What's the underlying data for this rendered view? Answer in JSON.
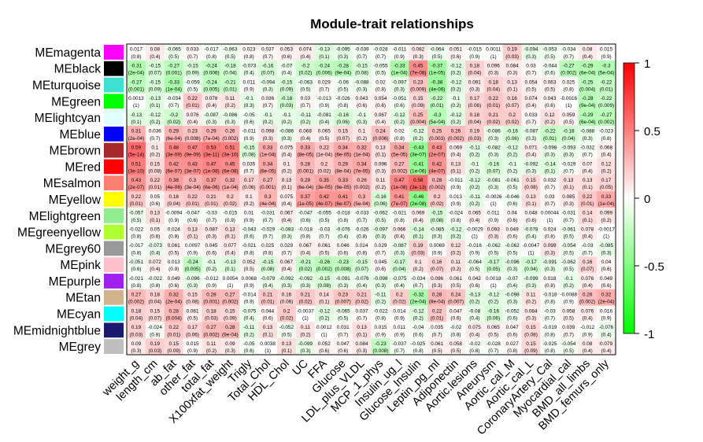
{
  "chart_data": {
    "type": "heatmap",
    "title": "Module-trait relationships",
    "rows": [
      "MEmagenta",
      "MEblack",
      "MEturquoise",
      "MEgreen",
      "MElightcyan",
      "MEblue",
      "MEbrown",
      "MEred",
      "MEsalmon",
      "MEyellow",
      "MElightgreen",
      "MEgreenyellow",
      "MEgrey60",
      "MEpink",
      "MEpurple",
      "MEtan",
      "MEcyan",
      "MEmidnightblue",
      "MEgrey"
    ],
    "row_colors": [
      "#ff00ff",
      "#000000",
      "#40e0d0",
      "#00ff00",
      "#e0ffff",
      "#0000ff",
      "#a52a2a",
      "#ff0000",
      "#fa8072",
      "#ffff00",
      "#90ee90",
      "#adff2f",
      "#999999",
      "#ffc0cb",
      "#a020f0",
      "#d2b48c",
      "#00ffff",
      "#191970",
      "#bebebe"
    ],
    "columns": [
      "weight_g",
      "length_cm",
      "ab_fat",
      "other_fat",
      "total_fat",
      "X100xfat_weight",
      "Trigly",
      "Total_Chol",
      "HDL_Chol",
      "UC",
      "FFA",
      "Glucose",
      "LDL_plus_VLDL",
      "MCP_1_phys",
      "Insulin_ug_l",
      "Glucose_Insulin",
      "Leptin_pg_ml",
      "Adiponectin",
      "Aortic.lesions",
      "Aneurysm",
      "Aortic_cal_M",
      "Aortic_cal_L",
      "CoronaryArtery_Cal",
      "Myocardial_cal",
      "BMD_all_limbs",
      "BMD_femurs_only"
    ],
    "values": [
      [
        "0.017",
        "0.08",
        "-0.065",
        "0.033",
        "-0.017",
        "-0.063",
        "0.023",
        "0.037",
        "0.053",
        "0.074",
        "-0.13",
        "-0.095",
        "-0.039",
        "-0.028",
        "-0.011",
        "0.082",
        "-0.064",
        "0.051",
        "-0.015",
        "0.0011",
        "0.19",
        "-0.094",
        "-0.053",
        "-0.034",
        "0.08",
        "0.015"
      ],
      [
        "-0.31",
        "-0.15",
        "-0.27",
        "-0.15",
        "-0.24",
        "-0.18",
        "-0.073",
        "-0.16",
        "-0.07",
        "-0.2",
        "-0.24",
        "-0.28",
        "-0.15",
        "-0.055",
        "-0.33",
        "0.45",
        "-0.37",
        "-0.12",
        "0.18",
        "0.096",
        "0.084",
        "0.03",
        "-0.044",
        "-0.27",
        "-0.29",
        "-0.3"
      ],
      [
        "-0.27",
        "-0.15",
        "-0.33",
        "-0.059",
        "-0.24",
        "-0.21",
        "0.011",
        "-0.094",
        "-0.15",
        "-0.063",
        "0.029",
        "-0.06",
        "-0.088",
        "0.02",
        "-0.097",
        "0.23",
        "-0.38",
        "-0.12",
        "0.091",
        "0.18",
        "0.13",
        "0.054",
        "0.063",
        "0.025",
        "-0.25",
        "-0.22"
      ],
      [
        "0.0013",
        "-0.13",
        "-0.034",
        "0.22",
        "0.078",
        "0.11",
        "-0.1",
        "0.036",
        "-0.18",
        "0.03",
        "-0.013",
        "-0.026",
        "0.043",
        "0.054",
        "-0.051",
        "0.15",
        "-0.22",
        "-0.1",
        "0.17",
        "0.22",
        "0.16",
        "0.074",
        "0.043",
        "-0.0016",
        "-0.28",
        "-0.22"
      ],
      [
        "-0.13",
        "-0.12",
        "-0.2",
        "0.076",
        "-0.087",
        "-0.086",
        "-0.05",
        "-0.1",
        "-0.1",
        "-0.11",
        "-0.081",
        "-0.16",
        "-0.1",
        "0.067",
        "-0.12",
        "0.25",
        "-0.3",
        "-0.12",
        "0.18",
        "0.21",
        "0.2",
        "0.033",
        "0.12",
        "0.059",
        "-0.29",
        "-0.27"
      ],
      [
        "0.31",
        "0.036",
        "0.29",
        "0.23",
        "0.29",
        "0.26",
        "-0.011",
        "0.098",
        "-0.086",
        "0.068",
        "0.065",
        "0.15",
        "0.1",
        "0.24",
        "0.02",
        "-0.12",
        "0.25",
        "0.26",
        "0.19",
        "-0.086",
        "-0.16",
        "-0.087",
        "-0.22",
        "-0.18",
        "-0.088",
        "-0.023"
      ],
      [
        "0.59",
        "0.1",
        "0.48",
        "0.47",
        "0.53",
        "0.51",
        "-0.15",
        "0.33",
        "0.075",
        "0.33",
        "0.22",
        "0.34",
        "0.32",
        "0.13",
        "0.34",
        "-0.43",
        "0.43",
        "0.069",
        "-0.11",
        "-0.082",
        "-0.12",
        "0.071",
        "-0.098",
        "-0.093",
        "-0.032",
        "0.068"
      ],
      [
        "0.51",
        "0.15",
        "0.42",
        "0.43",
        "0.47",
        "0.45",
        "0.035",
        "0.34",
        "0.1",
        "0.28",
        "0.2",
        "0.29",
        "0.34",
        "0.096",
        "0.27",
        "-0.41",
        "0.42",
        "0.13",
        "-0.1",
        "-0.16",
        "-0.1",
        "-0.092",
        "-0.14",
        "-0.029",
        "0.07",
        "0.12"
      ],
      [
        "0.43",
        "0.22",
        "0.38",
        "0.3",
        "0.37",
        "0.32",
        "0.17",
        "0.27",
        "0.13",
        "0.29",
        "0.35",
        "0.33",
        "0.26",
        "0.11",
        "0.47",
        "0.58",
        "0.28",
        "-0.011",
        "-0.12",
        "-0.081",
        "-0.061",
        "0.15",
        "0.032",
        "0.13",
        "0.13",
        "0.17"
      ],
      [
        "0.22",
        "0.05",
        "0.18",
        "0.22",
        "0.21",
        "0.2",
        "0.1",
        "0.3",
        "0.075",
        "0.37",
        "0.42",
        "0.41",
        "0.3",
        "-0.16",
        "0.41",
        "-0.46",
        "0.2",
        "0.013",
        "-0.11",
        "-0.0026",
        "-0.046",
        "0.13",
        "0.03",
        "0.085",
        "0.22",
        "0.33"
      ],
      [
        "-0.057",
        "0.13",
        "-0.0094",
        "-0.047",
        "-0.03",
        "-0.015",
        "0.01",
        "-0.031",
        "0.067",
        "-0.047",
        "-0.055",
        "-0.018",
        "-0.033",
        "-0.062",
        "-0.021",
        "0.069",
        "-0.15",
        "-0.024",
        "0.065",
        "0.011",
        "0.04",
        "0.048",
        "0.00044",
        "-0.031",
        "0.14",
        "0.099"
      ],
      [
        "-0.022",
        "0.05",
        "0.024",
        "0.13",
        "0.087",
        "0.13",
        "-0.043",
        "-0.029",
        "-0.083",
        "-0.018",
        "-0.03",
        "-0.076",
        "-0.026",
        "-0.097",
        "0.066",
        "-0.14",
        "-0.085",
        "-0.12",
        "-0.0029",
        "0.093",
        "0.049",
        "-0.078",
        "0.024",
        "-0.061",
        "0.078",
        "-0.0017"
      ],
      [
        "-0.017",
        "-0.073",
        "0.061",
        "0.0097",
        "0.045",
        "0.077",
        "-0.021",
        "0.025",
        "0.029",
        "0.067",
        "0.061",
        "0.046",
        "0.024",
        "0.029",
        "-0.087",
        "0.19",
        "0.0069",
        "0.12",
        "-0.016",
        "-0.062",
        "-0.062",
        "-0.0047",
        "0.099",
        "-0.054",
        "-0.03",
        "-0.085"
      ],
      [
        "-0.051",
        "0.072",
        "0.013",
        "-0.24",
        "-0.1",
        "-0.13",
        "0.052",
        "-0.15",
        "0.067",
        "-0.21",
        "-0.26",
        "-0.23",
        "-0.15",
        "0.045",
        "-0.17",
        "0.1",
        "0.16",
        "0.11",
        "-0.064",
        "-0.17",
        "-0.096",
        "-0.17",
        "-0.091",
        "-0.062",
        "0.16",
        "0.04"
      ],
      [
        "-0.021",
        "-0.022",
        "0.049",
        "-0.096",
        "-0.012",
        "0.0054",
        "0.0068",
        "-0.079",
        "-0.092",
        "-0.092",
        "-0.15",
        "-0.091",
        "-0.076",
        "-0.098",
        "-0.075",
        "-0.034",
        "0.096",
        "0.061",
        "0.042",
        "0.0018",
        "-0.07",
        "-0.099",
        "0.018",
        "-0.1",
        "0.076",
        "0.049"
      ],
      [
        "0.27",
        "0.18",
        "0.32",
        "0.15",
        "0.28",
        "0.27",
        "-0.014",
        "0.21",
        "0.16",
        "0.21",
        "0.14",
        "0.23",
        "0.21",
        "-0.11",
        "0.2",
        "-0.32",
        "0.28",
        "0.24",
        "-0.13",
        "-0.12",
        "-0.098",
        "0.11",
        "-0.018",
        "-0.0088",
        "0.26",
        "0.32"
      ],
      [
        "0.18",
        "0.15",
        "0.28",
        "0.061",
        "0.18",
        "0.15",
        "-0.075",
        "0.044",
        "0.2",
        "-0.0037",
        "-0.12",
        "-0.065",
        "0.037",
        "-0.022",
        "0.014",
        "-0.12",
        "0.22",
        "0.047",
        "-0.08",
        "-0.16",
        "-0.052",
        "0.084",
        "-0.03",
        "0.058",
        "0.076",
        "0.016"
      ],
      [
        "0.19",
        "-0.024",
        "0.22",
        "0.17",
        "0.27",
        "0.28",
        "-0.11",
        "0.13",
        "-0.052",
        "0.11",
        "0.0012",
        "0.031",
        "0.13",
        "0.015",
        "0.011",
        "-0.04",
        "0.035",
        "-0.02",
        "0.075",
        "0.065",
        "0.047",
        "0.15",
        "-0.019",
        "0.039",
        "-0.012",
        "-0.076"
      ],
      [
        "0.09",
        "0.19",
        "0.15",
        "0.015",
        "0.11",
        "0.09",
        "-0.05",
        "0.0038",
        "0.13",
        "-0.099",
        "0.052",
        "0.047",
        "0.084",
        "-0.23",
        "-0.037",
        "-0.025",
        "0.061",
        "0.058",
        "-0.02",
        "-0.028",
        "0.027",
        "0.15",
        "-0.025",
        "-0.054",
        "0.08",
        "0.079"
      ]
    ],
    "pvalues": [
      [
        "(0.8)",
        "(0.4)",
        "(0.5)",
        "(0.7)",
        "(0.8)",
        "(0.5)",
        "(0.8)",
        "(0.7)",
        "(0.6)",
        "(0.4)",
        "(0.1)",
        "(0.3)",
        "(0.7)",
        "(0.7)",
        "(0.9)",
        "(0.3)",
        "(0.5)",
        "(0.6)",
        "(0.9)",
        "(1)",
        "(0.03)",
        "(0.3)",
        "(0.5)",
        "(0.7)",
        "(0.4)",
        "(0.9)"
      ],
      [
        "(2e-04)",
        "(0.07)",
        "(0.001)",
        "(0.09)",
        "(0.006)",
        "(0.04)",
        "(0.4)",
        "(0.07)",
        "(0.4)",
        "(0.02)",
        "(0.006)",
        "(9e-04)",
        "(0.08)",
        "(0.5)",
        "(1e-04)",
        "(7e-08)",
        "(1e-05)",
        "(0.2)",
        "(0.04)",
        "(0.3)",
        "(0.3)",
        "(0.7)",
        "(0.6)",
        "(0.002)",
        "(6e-04)",
        "(5e-04)"
      ],
      [
        "(0.001)",
        "(0.09)",
        "(1e-04)",
        "(0.5)",
        "(0.005)",
        "(0.01)",
        "(0.9)",
        "(0.3)",
        "(0.09)",
        "(0.5)",
        "(0.7)",
        "(0.5)",
        "(0.3)",
        "(0.8)",
        "(0.3)",
        "(0.009)",
        "(4e-06)",
        "(0.2)",
        "(0.3)",
        "(0.04)",
        "(0.1)",
        "(0.5)",
        "(0.5)",
        "(0.8)",
        "(0.004)",
        "(0.01)"
      ],
      [
        "(1)",
        "(0.1)",
        "(0.7)",
        "(0.01)",
        "(0.4)",
        "(0.2)",
        "(0.3)",
        "(0.7)",
        "(0.03)",
        "(0.7)",
        "(0.9)",
        "(0.8)",
        "(0.6)",
        "(0.6)",
        "(0.6)",
        "(0.09)",
        "(0.01)",
        "(0.2)",
        "(0.06)",
        "(0.01)",
        "(0.07)",
        "(0.4)",
        "(0.6)",
        "(1)",
        "(9e-04)",
        "(0.009)"
      ],
      [
        "(0.1)",
        "(0.2)",
        "(0.02)",
        "(0.4)",
        "(0.3)",
        "(0.3)",
        "(0.6)",
        "(0.2)",
        "(0.2)",
        "(0.2)",
        "(0.4)",
        "(0.06)",
        "(0.3)",
        "(0.4)",
        "(0.2)",
        "(0.004)",
        "(5e-04)",
        "(0.2)",
        "(0.04)",
        "(0.02)",
        "(0.02)",
        "(0.7)",
        "(0.2)",
        "(0.5)",
        "(6e-04)",
        "(0.002)"
      ],
      [
        "(2e-04)",
        "(0.7)",
        "(6e-04)",
        "(0.008)",
        "(7e-04)",
        "(0.002)",
        "(0.9)",
        "(0.3)",
        "(0.3)",
        "(0.4)",
        "(0.5)",
        "(0.07)",
        "(0.2)",
        "(0.006)",
        "(0.8)",
        "(0.2)",
        "(0.003)",
        "(0.002)",
        "(0.03)",
        "(0.3)",
        "(0.06)",
        "(0.3)",
        "(0.01)",
        "(0.04)",
        "(0.3)",
        "(0.8)"
      ],
      [
        "(5e-14)",
        "(0.2)",
        "(3e-09)",
        "(9e-09)",
        "(3e-11)",
        "(3e-10)",
        "(0.08)",
        "(1e-04)",
        "(0.4)",
        "(8e-05)",
        "(1e-04)",
        "(6e-05)",
        "(1e-04)",
        "(0.1)",
        "(5e-05)",
        "(3e-07)",
        "(2e-07)",
        "(0.4)",
        "(0.2)",
        "(0.3)",
        "(0.2)",
        "(0.4)",
        "(0.3)",
        "(0.3)",
        "(0.7)",
        "(0.4)"
      ],
      [
        "(3e-10)",
        "(0.08)",
        "(6e-07)",
        "(3e-07)",
        "(1e-08)",
        "(6e-08)",
        "(0.7)",
        "(6e-05)",
        "(0.2)",
        "(0.001)",
        "(0.02)",
        "(8e-04)",
        "(7e-05)",
        "(0.3)",
        "(0.002)",
        "(1e-06)",
        "(4e-07)",
        "(0.1)",
        "(0.2)",
        "(0.07)",
        "(0.2)",
        "(0.3)",
        "(0.1)",
        "(0.7)",
        "(0.4)",
        "(0.2)"
      ],
      [
        "(2e-07)",
        "(0.01)",
        "(4e-06)",
        "(3e-04)",
        "(6e-06)",
        "(1e-04)",
        "(0.06)",
        "(0.001)",
        "(0.1)",
        "(6e-04)",
        "(3e-05)",
        "(9e-05)",
        "(0.002)",
        "(0.2)",
        "(1e-08)",
        "(3e-13)",
        "(0.002)",
        "(0.9)",
        "(0.2)",
        "(0.3)",
        "(0.5)",
        "(0.08)",
        "(0.7)",
        "(0.1)",
        "(0.1)",
        "(0.05)"
      ],
      [
        "(0.01)",
        "(0.6)",
        "(0.04)",
        "(0.01)",
        "(0.01)",
        "(0.02)",
        "(0.2)",
        "(4e-04)",
        "(0.4)",
        "(1e-05)",
        "(4e-07)",
        "(6e-07)",
        "(5e-04)",
        "(0.06)",
        "(7e-07)",
        "(2e-08)",
        "(0.02)",
        "(0.9)",
        "(0.2)",
        "(1)",
        "(0.6)",
        "(0.1)",
        "(0.7)",
        "(0.3)",
        "(0.01)",
        "(1e-04)"
      ],
      [
        "(0.5)",
        "(0.1)",
        "(0.9)",
        "(0.6)",
        "(0.7)",
        "(0.9)",
        "(0.9)",
        "(0.7)",
        "(0.4)",
        "(0.6)",
        "(0.5)",
        "(0.8)",
        "(0.7)",
        "(0.5)",
        "(0.8)",
        "(0.4)",
        "(0.08)",
        "(0.8)",
        "(0.4)",
        "(0.9)",
        "(0.6)",
        "(0.6)",
        "(1)",
        "(0.7)",
        "(0.1)",
        "(0.2)"
      ],
      [
        "(0.8)",
        "(0.6)",
        "(0.8)",
        "(0.1)",
        "(0.3)",
        "(0.1)",
        "(0.6)",
        "(0.7)",
        "(0.3)",
        "(0.8)",
        "(0.7)",
        "(0.4)",
        "(0.8)",
        "(0.3)",
        "(0.4)",
        "(0.1)",
        "(0.3)",
        "(0.2)",
        "(1)",
        "(0.3)",
        "(0.6)",
        "(0.4)",
        "(0.8)",
        "(0.5)",
        "(0.4)",
        "(1)"
      ],
      [
        "(0.8)",
        "(0.4)",
        "(0.5)",
        "(0.9)",
        "(0.6)",
        "(0.4)",
        "(0.8)",
        "(0.8)",
        "(0.7)",
        "(0.4)",
        "(0.5)",
        "(0.6)",
        "(0.8)",
        "(0.7)",
        "(0.3)",
        "(0.03)",
        "(0.9)",
        "(0.2)",
        "(0.9)",
        "(0.5)",
        "(0.5)",
        "(1)",
        "(0.3)",
        "(0.5)",
        "(0.7)",
        "(0.3)"
      ],
      [
        "(0.6)",
        "(0.4)",
        "(0.9)",
        "(0.005)",
        "(0.2)",
        "(0.1)",
        "(0.5)",
        "(0.08)",
        "(0.4)",
        "(0.02)",
        "(0.002)",
        "(0.008)",
        "(0.07)",
        "(0.6)",
        "(0.04)",
        "(0.2)",
        "(0.07)",
        "(0.2)",
        "(0.5)",
        "(0.05)",
        "(0.3)",
        "(0.04)",
        "(0.3)",
        "(0.5)",
        "(0.07)",
        "(0.6)"
      ],
      [
        "(0.8)",
        "(0.8)",
        "(0.6)",
        "(0.3)",
        "(0.9)",
        "(1)",
        "(0.9)",
        "(0.4)",
        "(0.3)",
        "(0.3)",
        "(0.08)",
        "(0.3)",
        "(0.4)",
        "(0.3)",
        "(0.4)",
        "(0.7)",
        "(0.3)",
        "(0.5)",
        "(0.6)",
        "(1)",
        "(0.4)",
        "(0.3)",
        "(0.8)",
        "(0.2)",
        "(0.4)",
        "(0.6)"
      ],
      [
        "(0.002)",
        "(0.04)",
        "(2e-04)",
        "(0.08)",
        "(0.001)",
        "(0.002)",
        "(0.9)",
        "(0.01)",
        "(0.06)",
        "(0.02)",
        "(0.1)",
        "(0.007)",
        "(0.02)",
        "(0.2)",
        "(0.02)",
        "(2e-04)",
        "(8e-04)",
        "(0.007)",
        "(0.2)",
        "(0.2)",
        "(0.3)",
        "(0.2)",
        "(0.8)",
        "(0.9)",
        "(0.002)",
        "(2e-04)"
      ],
      [
        "(0.04)",
        "(0.07)",
        "(0.004)",
        "(0.5)",
        "(0.03)",
        "(0.09)",
        "(0.4)",
        "(0.6)",
        "(0.02)",
        "(1)",
        "(0.2)",
        "(0.5)",
        "(0.7)",
        "(0.8)",
        "(0.9)",
        "(0.2)",
        "(0.01)",
        "(0.6)",
        "(0.4)",
        "(0.06)",
        "(0.6)",
        "(0.3)",
        "(0.7)",
        "(0.5)",
        "(0.4)",
        "(0.9)"
      ],
      [
        "(0.03)",
        "(0.8)",
        "(0.01)",
        "(0.06)",
        "(0.002)",
        "(9e-04)",
        "(0.2)",
        "(0.1)",
        "(0.5)",
        "(0.2)",
        "(1)",
        "(0.7)",
        "(0.1)",
        "(0.9)",
        "(0.9)",
        "(0.6)",
        "(0.7)",
        "(0.8)",
        "(0.4)",
        "(0.5)",
        "(0.6)",
        "(0.08)",
        "(0.8)",
        "(0.7)",
        "(0.9)",
        "(0.4)"
      ],
      [
        "(0.3)",
        "(0.03)",
        "(0.09)",
        "(0.9)",
        "(0.2)",
        "(0.3)",
        "(0.6)",
        "(1)",
        "(0.1)",
        "(0.3)",
        "(0.6)",
        "(0.6)",
        "(0.3)",
        "(0.008)",
        "(0.7)",
        "(0.8)",
        "(0.5)",
        "(0.5)",
        "(0.8)",
        "(0.7)",
        "(0.8)",
        "(0.09)",
        "(0.8)",
        "(0.5)",
        "(0.4)",
        "(0.4)"
      ]
    ],
    "colorbar": {
      "ticks": [
        "1",
        "0.5",
        "0",
        "-0.5",
        "-1"
      ],
      "low": "#00ff00",
      "mid": "#ffffff",
      "high": "#ff0000"
    },
    "zlim": [
      -1,
      1
    ]
  }
}
